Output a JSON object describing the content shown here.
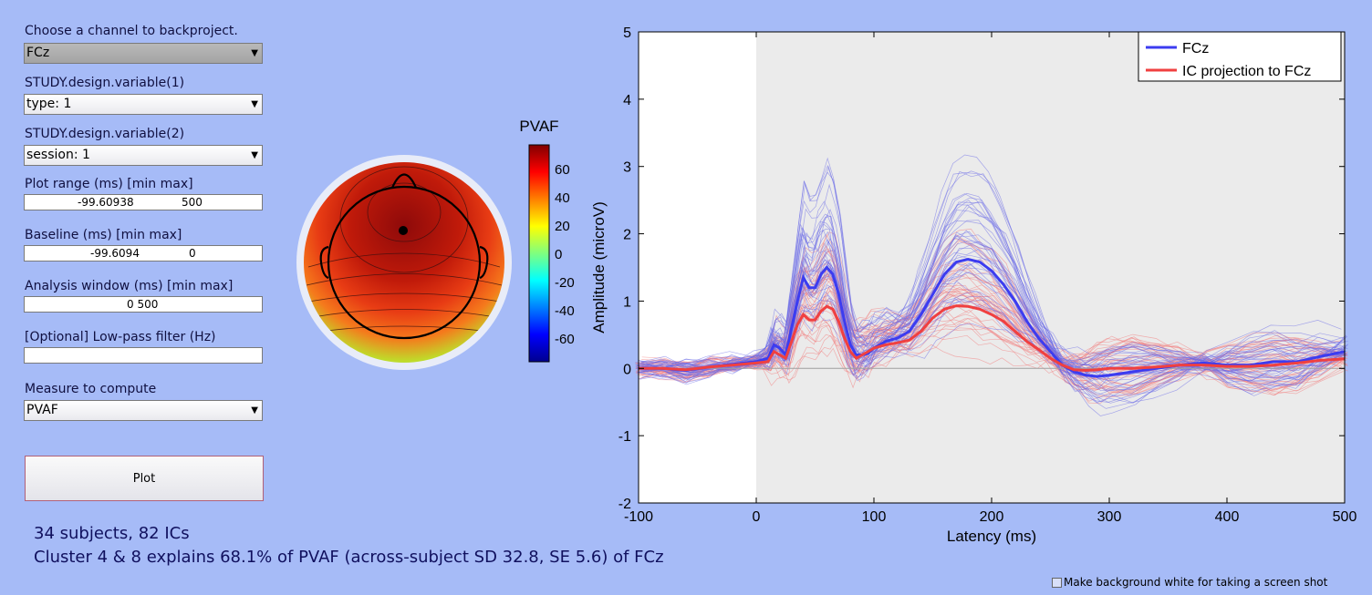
{
  "controls": {
    "channel": {
      "label": "Choose a channel to backproject.",
      "value": "FCz"
    },
    "var1": {
      "label": "STUDY.design.variable(1)",
      "value": "type: 1"
    },
    "var2": {
      "label": "STUDY.design.variable(2)",
      "value": "session: 1"
    },
    "plot_range": {
      "label": "Plot range (ms) [min max]",
      "min": "-99.60938",
      "max": "500"
    },
    "baseline": {
      "label": "Baseline (ms) [min max]",
      "min": "-99.6094",
      "max": "0"
    },
    "analysis_window": {
      "label": "Analysis window (ms) [min max]",
      "value": "0 500"
    },
    "lowpass": {
      "label": "[Optional] Low-pass filter (Hz)",
      "value": ""
    },
    "measure": {
      "label": "Measure to compute",
      "value": "PVAF"
    },
    "plot_button": "Plot"
  },
  "status": {
    "line1": "34 subjects, 82 ICs",
    "line2": "Cluster 4 & 8 explains 68.1% of PVAF (across-subject SD 32.8, SE 5.6) of FCz"
  },
  "screenshot_option": "Make background white for taking a screen shot",
  "colorbar": {
    "title": "PVAF",
    "ticks": [
      "60",
      "40",
      "20",
      "0",
      "-20",
      "-40",
      "-60"
    ]
  },
  "chart_data": {
    "type": "line",
    "xlabel": "Latency (ms)",
    "ylabel": "Amplitude (microV)",
    "xlim": [
      -100,
      500
    ],
    "ylim": [
      -2,
      5
    ],
    "xticks": [
      "-100",
      "0",
      "100",
      "200",
      "300",
      "400",
      "500"
    ],
    "yticks": [
      "-2",
      "-1",
      "0",
      "1",
      "2",
      "3",
      "4",
      "5"
    ],
    "shaded_from": 0,
    "legend": [
      "FCz",
      "IC projection to FCz"
    ],
    "series": [
      {
        "name": "FCz",
        "color": "#3c3cf0",
        "x": [
          -100,
          -80,
          -60,
          -40,
          -20,
          0,
          10,
          15,
          20,
          25,
          30,
          35,
          40,
          45,
          50,
          55,
          60,
          65,
          70,
          75,
          80,
          85,
          90,
          95,
          100,
          110,
          120,
          130,
          140,
          150,
          160,
          170,
          180,
          190,
          200,
          210,
          220,
          230,
          240,
          250,
          260,
          270,
          280,
          290,
          300,
          320,
          340,
          360,
          380,
          400,
          420,
          440,
          460,
          480,
          500
        ],
        "y": [
          0.0,
          0.0,
          -0.03,
          0.02,
          0.06,
          0.1,
          0.15,
          0.35,
          0.3,
          0.2,
          0.6,
          1.0,
          1.35,
          1.2,
          1.2,
          1.4,
          1.5,
          1.4,
          1.1,
          0.7,
          0.35,
          0.2,
          0.2,
          0.22,
          0.3,
          0.4,
          0.45,
          0.55,
          0.8,
          1.1,
          1.4,
          1.58,
          1.62,
          1.58,
          1.45,
          1.25,
          1.0,
          0.7,
          0.45,
          0.25,
          0.05,
          -0.05,
          -0.1,
          -0.12,
          -0.1,
          -0.05,
          0.0,
          0.05,
          0.08,
          0.05,
          0.05,
          0.1,
          0.1,
          0.18,
          0.25
        ]
      },
      {
        "name": "IC projection to FCz",
        "color": "#f04040",
        "x": [
          -100,
          -80,
          -60,
          -40,
          -20,
          0,
          10,
          15,
          20,
          25,
          30,
          35,
          40,
          45,
          50,
          55,
          60,
          65,
          70,
          75,
          80,
          85,
          90,
          95,
          100,
          110,
          120,
          130,
          140,
          150,
          160,
          170,
          180,
          190,
          200,
          210,
          220,
          230,
          240,
          250,
          260,
          270,
          280,
          290,
          300,
          320,
          340,
          360,
          380,
          400,
          420,
          440,
          460,
          480,
          500
        ],
        "y": [
          0.0,
          0.0,
          -0.02,
          0.02,
          0.05,
          0.08,
          0.1,
          0.25,
          0.2,
          0.15,
          0.4,
          0.65,
          0.8,
          0.72,
          0.72,
          0.85,
          0.92,
          0.88,
          0.7,
          0.45,
          0.25,
          0.15,
          0.2,
          0.25,
          0.3,
          0.35,
          0.38,
          0.42,
          0.55,
          0.75,
          0.88,
          0.93,
          0.92,
          0.88,
          0.8,
          0.7,
          0.55,
          0.4,
          0.28,
          0.15,
          0.05,
          -0.02,
          -0.03,
          -0.02,
          0.0,
          0.0,
          0.02,
          0.05,
          0.05,
          0.03,
          0.03,
          0.05,
          0.08,
          0.12,
          0.14
        ]
      }
    ]
  }
}
